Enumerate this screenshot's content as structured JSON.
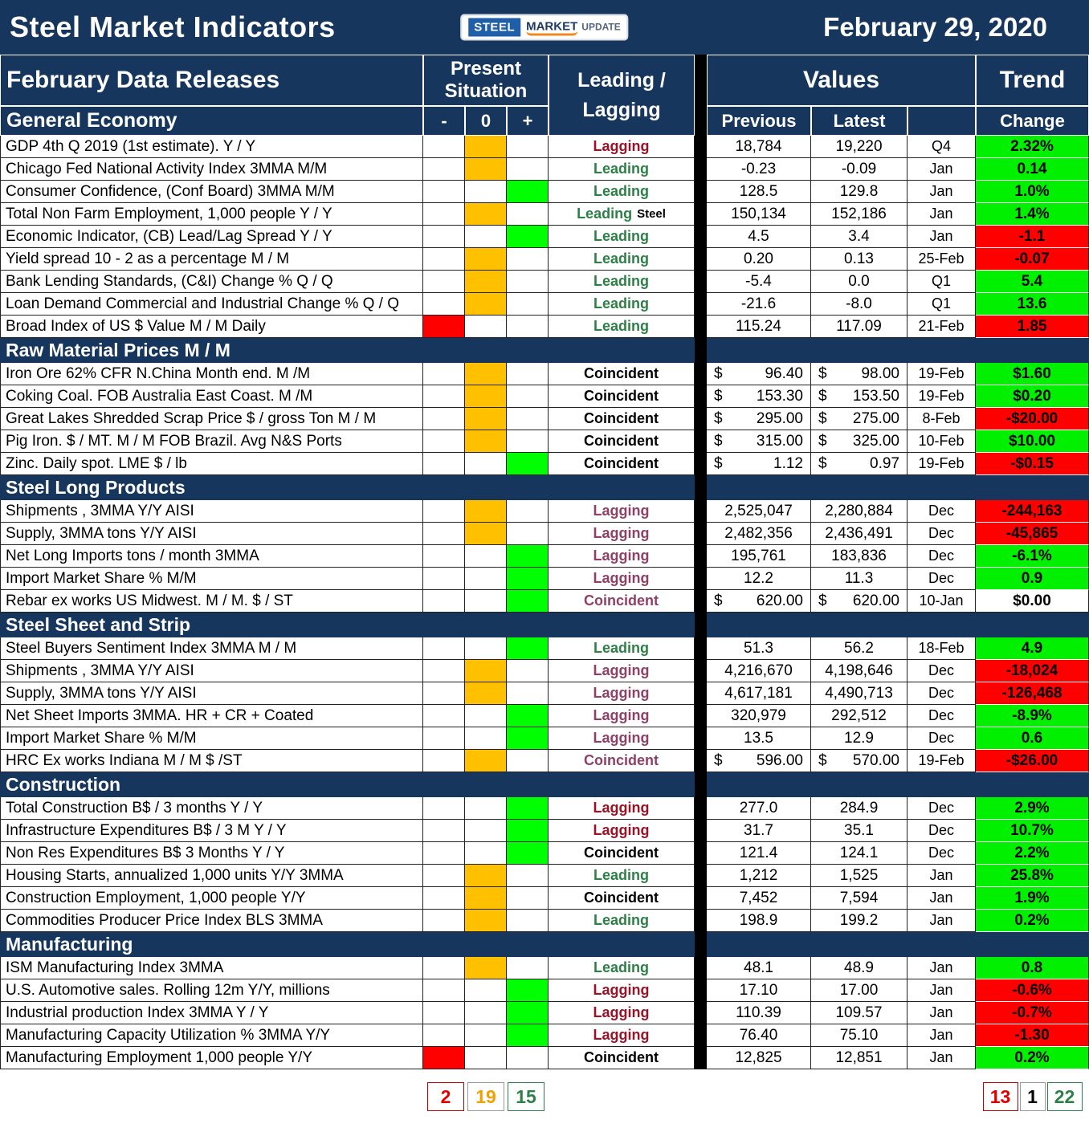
{
  "header": {
    "title": "Steel Market Indicators",
    "date": "February 29, 2020",
    "logo": {
      "steel": "STEEL",
      "market": "MARKET",
      "update": "UPDATE"
    }
  },
  "columns": {
    "data_releases": "February Data Releases",
    "present_situation": "Present Situation",
    "leading_lagging": "Leading / Lagging",
    "values": "Values",
    "trend": "Trend",
    "minus": "-",
    "zero": "0",
    "plus": "+",
    "previous": "Previous",
    "latest": "Latest",
    "change": "Change"
  },
  "colors": {
    "header_navy": "#17365d",
    "situation_negative": "#ff0000",
    "situation_neutral": "#ffc000",
    "situation_positive": "#00ff00",
    "trend_up": "#00f000",
    "trend_down": "#ff0000",
    "leading_text": "#2e8047",
    "lagging_text_dark": "#9a1226",
    "lagging_text_steel": "#8e4066"
  },
  "sections": [
    {
      "title": "General Economy",
      "rows": [
        {
          "name": "GDP 4th Q 2019 (1st estimate). Y / Y",
          "situation": "zero",
          "leadlag": "Lagging",
          "leadlag_style": "lag-dark",
          "previous": "18,784",
          "latest": "19,220",
          "date": "Q4",
          "change": "2.32%",
          "change_style": "up"
        },
        {
          "name": "Chicago Fed National Activity Index 3MMA M/M",
          "situation": "zero",
          "leadlag": "Leading",
          "leadlag_style": "lead",
          "previous": "-0.23",
          "latest": "-0.09",
          "date": "Jan",
          "change": "0.14",
          "change_style": "up"
        },
        {
          "name": "Consumer Confidence, (Conf Board) 3MMA M/M",
          "situation": "plus",
          "leadlag": "Leading",
          "leadlag_style": "lead",
          "previous": "128.5",
          "latest": "129.8",
          "date": "Jan",
          "change": "1.0%",
          "change_style": "up"
        },
        {
          "name": "Total Non Farm Employment, 1,000 people Y / Y",
          "situation": "zero",
          "leadlag": "Leading",
          "leadlag_style": "lead",
          "leadlag_suffix": "Steel",
          "previous": "150,134",
          "latest": "152,186",
          "date": "Jan",
          "change": "1.4%",
          "change_style": "up"
        },
        {
          "name": "Economic Indicator, (CB) Lead/Lag Spread Y / Y",
          "situation": "plus",
          "leadlag": "Leading",
          "leadlag_style": "lead",
          "previous": "4.5",
          "latest": "3.4",
          "date": "Jan",
          "change": "-1.1",
          "change_style": "down"
        },
        {
          "name": "Yield spread 10 - 2 as a percentage M / M",
          "situation": "zero",
          "leadlag": "Leading",
          "leadlag_style": "lead",
          "previous": "0.20",
          "latest": "0.13",
          "date": "25-Feb",
          "change": "-0.07",
          "change_style": "down"
        },
        {
          "name": "Bank Lending Standards, (C&I) Change % Q / Q",
          "situation": "zero",
          "leadlag": "Leading",
          "leadlag_style": "lead",
          "previous": "-5.4",
          "latest": "0.0",
          "date": "Q1",
          "change": "5.4",
          "change_style": "up"
        },
        {
          "name": "Loan Demand Commercial and Industrial Change % Q / Q",
          "situation": "zero",
          "leadlag": "Leading",
          "leadlag_style": "lead",
          "previous": "-21.6",
          "latest": "-8.0",
          "date": "Q1",
          "change": "13.6",
          "change_style": "up"
        },
        {
          "name": "Broad Index of US $ Value M / M Daily",
          "situation": "minus",
          "leadlag": "Leading",
          "leadlag_style": "lead",
          "previous": "115.24",
          "latest": "117.09",
          "date": "21-Feb",
          "change": "1.85",
          "change_style": "down"
        }
      ]
    },
    {
      "title": "Raw Material Prices M / M",
      "rows": [
        {
          "name": "Iron Ore 62% CFR N.China Month end. M /M",
          "situation": "zero",
          "leadlag": "Coincident",
          "leadlag_style": "coin-black",
          "currency": true,
          "previous": "96.40",
          "latest": "98.00",
          "date": "19-Feb",
          "change": "$1.60",
          "change_style": "up"
        },
        {
          "name": "Coking Coal. FOB Australia East Coast. M /M",
          "situation": "zero",
          "leadlag": "Coincident",
          "leadlag_style": "coin-black",
          "currency": true,
          "previous": "153.30",
          "latest": "153.50",
          "date": "19-Feb",
          "change": "$0.20",
          "change_style": "up"
        },
        {
          "name": "Great Lakes Shredded Scrap Price $ / gross Ton M / M",
          "situation": "zero",
          "leadlag": "Coincident",
          "leadlag_style": "coin-black",
          "currency": true,
          "previous": "295.00",
          "latest": "275.00",
          "date": "8-Feb",
          "change": "-$20.00",
          "change_style": "down"
        },
        {
          "name": "Pig Iron. $ / MT. M / M FOB Brazil. Avg N&S Ports",
          "situation": "zero",
          "leadlag": "Coincident",
          "leadlag_style": "coin-black",
          "currency": true,
          "previous": "315.00",
          "latest": "325.00",
          "date": "10-Feb",
          "change": "$10.00",
          "change_style": "up"
        },
        {
          "name": "Zinc. Daily spot. LME $ / lb",
          "situation": "plus",
          "leadlag": "Coincident",
          "leadlag_style": "coin-black",
          "currency": true,
          "previous": "1.12",
          "latest": "0.97",
          "date": "19-Feb",
          "change": "-$0.15",
          "change_style": "down"
        }
      ]
    },
    {
      "title": "Steel Long Products",
      "rows": [
        {
          "name": "Shipments , 3MMA Y/Y AISI",
          "situation": "zero",
          "leadlag": "Lagging",
          "leadlag_style": "lag-purple",
          "previous": "2,525,047",
          "latest": "2,280,884",
          "date": "Dec",
          "change": "-244,163",
          "change_style": "down"
        },
        {
          "name": "Supply, 3MMA tons Y/Y AISI",
          "situation": "zero",
          "leadlag": "Lagging",
          "leadlag_style": "lag-purple",
          "previous": "2,482,356",
          "latest": "2,436,491",
          "date": "Dec",
          "change": "-45,865",
          "change_style": "down"
        },
        {
          "name": "Net Long Imports tons / month 3MMA",
          "situation": "plus",
          "leadlag": "Lagging",
          "leadlag_style": "lag-purple",
          "previous": "195,761",
          "latest": "183,836",
          "date": "Dec",
          "change": "-6.1%",
          "change_style": "up"
        },
        {
          "name": "Import Market Share %  M/M",
          "situation": "plus",
          "leadlag": "Lagging",
          "leadlag_style": "lag-purple",
          "previous": "12.2",
          "latest": "11.3",
          "date": "Dec",
          "change": "0.9",
          "change_style": "up"
        },
        {
          "name": "Rebar ex works US  Midwest. M / M. $ / ST",
          "situation": "plus",
          "leadlag": "Coincident",
          "leadlag_style": "coin-purple",
          "currency": true,
          "previous": "620.00",
          "latest": "620.00",
          "date": "10-Jan",
          "change": "$0.00",
          "change_style": "flat"
        }
      ]
    },
    {
      "title": "Steel Sheet and Strip",
      "rows": [
        {
          "name": "Steel Buyers Sentiment Index 3MMA M / M",
          "situation": "plus",
          "leadlag": "Leading",
          "leadlag_style": "lead",
          "previous": "51.3",
          "latest": "56.2",
          "date": "18-Feb",
          "change": "4.9",
          "change_style": "up"
        },
        {
          "name": "Shipments , 3MMA Y/Y AISI",
          "situation": "zero",
          "leadlag": "Lagging",
          "leadlag_style": "lag-purple",
          "previous": "4,216,670",
          "latest": "4,198,646",
          "date": "Dec",
          "change": "-18,024",
          "change_style": "down"
        },
        {
          "name": "Supply, 3MMA tons Y/Y AISI",
          "situation": "zero",
          "leadlag": "Lagging",
          "leadlag_style": "lag-purple",
          "previous": "4,617,181",
          "latest": "4,490,713",
          "date": "Dec",
          "change": "-126,468",
          "change_style": "down"
        },
        {
          "name": "Net Sheet Imports  3MMA. HR + CR + Coated",
          "situation": "plus",
          "leadlag": "Lagging",
          "leadlag_style": "lag-purple",
          "previous": "320,979",
          "latest": "292,512",
          "date": "Dec",
          "change": "-8.9%",
          "change_style": "up"
        },
        {
          "name": "Import Market Share % M/M",
          "situation": "plus",
          "leadlag": "Lagging",
          "leadlag_style": "lag-purple",
          "previous": "13.5",
          "latest": "12.9",
          "date": "Dec",
          "change": "0.6",
          "change_style": "up"
        },
        {
          "name": "HRC Ex works Indiana M / M $ /ST",
          "situation": "zero",
          "leadlag": "Coincident",
          "leadlag_style": "coin-purple",
          "currency": true,
          "previous": "596.00",
          "latest": "570.00",
          "date": "19-Feb",
          "change": "-$26.00",
          "change_style": "down"
        }
      ]
    },
    {
      "title": "Construction",
      "rows": [
        {
          "name": "Total Construction B$ /  3 months Y / Y",
          "situation": "plus",
          "leadlag": "Lagging",
          "leadlag_style": "lag-dark",
          "previous": "277.0",
          "latest": "284.9",
          "date": "Dec",
          "change": "2.9%",
          "change_style": "up"
        },
        {
          "name": "Infrastructure Expenditures B$ / 3 M    Y / Y",
          "situation": "plus",
          "leadlag": "Lagging",
          "leadlag_style": "lag-dark",
          "previous": "31.7",
          "latest": "35.1",
          "date": "Dec",
          "change": "10.7%",
          "change_style": "up"
        },
        {
          "name": "Non Res Expenditures B$  3 Months   Y / Y",
          "situation": "plus",
          "leadlag": "Coincident",
          "leadlag_style": "coin-black",
          "previous": "121.4",
          "latest": "124.1",
          "date": "Dec",
          "change": "2.2%",
          "change_style": "up"
        },
        {
          "name": "Housing Starts, annualized 1,000 units Y/Y 3MMA",
          "situation": "zero",
          "leadlag": "Leading",
          "leadlag_style": "lead",
          "previous": "1,212",
          "latest": "1,525",
          "date": "Jan",
          "change": "25.8%",
          "change_style": "up"
        },
        {
          "name": "Construction Employment, 1,000 people Y/Y",
          "situation": "zero",
          "leadlag": "Coincident",
          "leadlag_style": "coin-black",
          "previous": "7,452",
          "latest": "7,594",
          "date": "Jan",
          "change": "1.9%",
          "change_style": "up"
        },
        {
          "name": "Commodities Producer Price Index BLS 3MMA",
          "situation": "zero",
          "leadlag": "Leading",
          "leadlag_style": "lead",
          "previous": "198.9",
          "latest": "199.2",
          "date": "Jan",
          "change": "0.2%",
          "change_style": "up"
        }
      ]
    },
    {
      "title": "Manufacturing",
      "rows": [
        {
          "name": "ISM Manufacturing Index 3MMA",
          "situation": "zero",
          "leadlag": "Leading",
          "leadlag_style": "lead",
          "previous": "48.1",
          "latest": "48.9",
          "date": "Jan",
          "change": "0.8",
          "change_style": "up"
        },
        {
          "name": "U.S. Automotive sales. Rolling 12m Y/Y, millions",
          "situation": "plus",
          "leadlag": "Lagging",
          "leadlag_style": "lag-dark",
          "previous": "17.10",
          "latest": "17.00",
          "date": "Jan",
          "change": "-0.6%",
          "change_style": "down"
        },
        {
          "name": "Industrial production Index 3MMA Y / Y",
          "situation": "plus",
          "leadlag": "Lagging",
          "leadlag_style": "lag-dark",
          "previous": "110.39",
          "latest": "109.57",
          "date": "Jan",
          "change": "-0.7%",
          "change_style": "down"
        },
        {
          "name": "Manufacturing Capacity Utilization % 3MMA Y/Y",
          "situation": "plus",
          "leadlag": "Lagging",
          "leadlag_style": "lag-dark",
          "previous": "76.40",
          "latest": "75.10",
          "date": "Jan",
          "change": "-1.30",
          "change_style": "down"
        },
        {
          "name": "Manufacturing Employment 1,000 people Y/Y",
          "situation": "minus",
          "leadlag": "Coincident",
          "leadlag_style": "coin-black",
          "previous": "12,825",
          "latest": "12,851",
          "date": "Jan",
          "change": "0.2%",
          "change_style": "up"
        }
      ]
    }
  ],
  "summary": {
    "situation_negative": "2",
    "situation_neutral": "19",
    "situation_positive": "15",
    "trend_down": "13",
    "trend_flat": "1",
    "trend_up": "22"
  }
}
